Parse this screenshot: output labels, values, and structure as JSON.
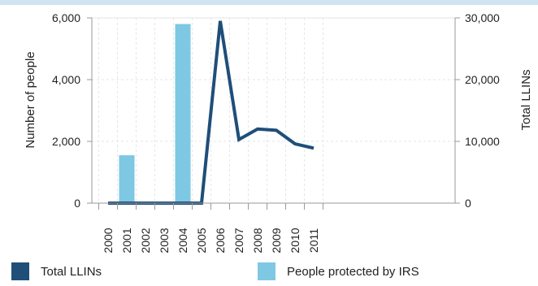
{
  "chart_data": {
    "type": "bar",
    "title": "",
    "categories": [
      "2000",
      "2001",
      "2002",
      "2003",
      "2004",
      "2005",
      "2006",
      "2007",
      "2008",
      "2009",
      "2010",
      "2011"
    ],
    "series": [
      {
        "name": "People protected by IRS",
        "type": "bar",
        "axis": "left",
        "color": "#7ec8e3",
        "values": [
          0,
          1550,
          0,
          0,
          5800,
          0,
          0,
          0,
          0,
          0,
          0,
          0
        ]
      },
      {
        "name": "Total LLINs",
        "type": "line",
        "axis": "right",
        "color": "#1f4e79",
        "values": [
          0,
          0,
          0,
          0,
          0,
          0,
          29500,
          10300,
          12000,
          11800,
          9600,
          8900
        ]
      }
    ],
    "ylabel": "Number of people",
    "y2label": "Total LLINs",
    "ylim": [
      0,
      6000
    ],
    "y2lim": [
      0,
      30000
    ],
    "yticks": [
      "0",
      "2,000",
      "4,000",
      "6,000"
    ],
    "y2ticks": [
      "0",
      "10,000",
      "20,000",
      "30,000"
    ],
    "grid": true,
    "legend_position": "bottom"
  },
  "legend": {
    "items": [
      {
        "label": "Total LLINs",
        "color": "#1f4e79"
      },
      {
        "label": "People protected by IRS",
        "color": "#7ec8e3"
      }
    ]
  }
}
